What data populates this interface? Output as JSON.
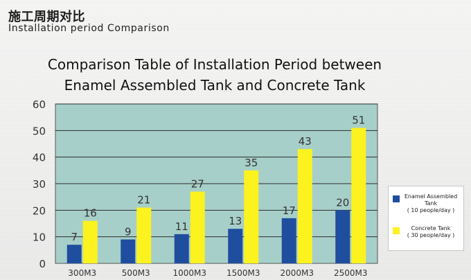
{
  "header": {
    "title_cn": "施工周期对比",
    "title_en": "Installation period Comparison"
  },
  "colors": {
    "plot_background": "#a7cfc9",
    "series_enamel": "#1f4e9f",
    "series_concrete": "#fbf21f",
    "gridline": "#2b2b2b"
  },
  "chart_data": {
    "type": "bar",
    "title_line1": "Comparison Table of Installation Period between",
    "title_line2": "Enamel Assembled Tank and Concrete Tank",
    "categories": [
      "300M3",
      "500M3",
      "1000M3",
      "1500M3",
      "2000M3",
      "2500M3"
    ],
    "ylim": [
      0,
      60
    ],
    "yticks": [
      "0",
      "10",
      "20",
      "30",
      "40",
      "50",
      "60"
    ],
    "grid": true,
    "legend_position": "right",
    "series": [
      {
        "name": "Enamel Assembled Tank",
        "note": "( 10 people/day )",
        "values": [
          7,
          9,
          11,
          13,
          17,
          20
        ]
      },
      {
        "name": "Concrete Tank",
        "note": "( 30 people/day )",
        "values": [
          16,
          21,
          27,
          35,
          43,
          51
        ]
      }
    ]
  }
}
